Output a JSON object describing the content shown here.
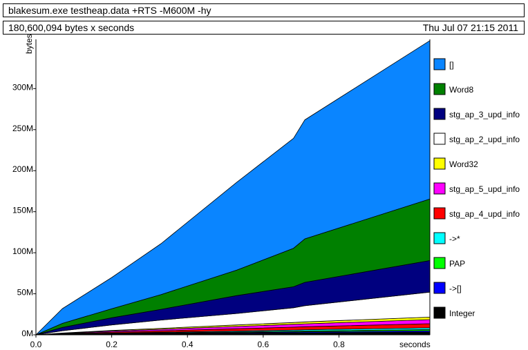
{
  "header": {
    "command": "blakesum.exe testheap.data +RTS -M600M -hy",
    "total": "180,600,094 bytes x seconds",
    "date": "Thu Jul 07 21:15 2011"
  },
  "chart_data": {
    "type": "area",
    "stacked": true,
    "xlabel": "seconds",
    "ylabel": "bytes",
    "xlim": [
      0,
      1.04
    ],
    "ylim": [
      0,
      360
    ],
    "x_ticks": [
      "0.0",
      "0.2",
      "0.4",
      "0.6",
      "0.8"
    ],
    "x_tick_values": [
      0.0,
      0.2,
      0.4,
      0.6,
      0.8
    ],
    "y_ticks": [
      "0M",
      "50M",
      "100M",
      "150M",
      "200M",
      "250M",
      "300M"
    ],
    "y_tick_values": [
      0,
      50,
      100,
      150,
      200,
      250,
      300
    ],
    "y_unit": "M bytes",
    "legend_position": "right",
    "x": [
      0.0,
      0.07,
      0.2,
      0.33,
      0.53,
      0.68,
      0.71,
      1.04
    ],
    "series": [
      {
        "name": "Integer",
        "color": "#000000",
        "values": [
          0,
          0.3,
          0.8,
          1.2,
          1.8,
          2.3,
          2.4,
          3.4
        ]
      },
      {
        "name": "->[]",
        "color": "#0000ff",
        "values": [
          0,
          0.2,
          0.4,
          0.6,
          0.9,
          1.1,
          1.2,
          1.6
        ]
      },
      {
        "name": "PAP",
        "color": "#00ff00",
        "values": [
          0,
          0.2,
          0.4,
          0.6,
          0.8,
          1.0,
          1.1,
          1.5
        ]
      },
      {
        "name": "->*",
        "color": "#00ffff",
        "values": [
          0,
          0.2,
          0.5,
          0.7,
          1.1,
          1.4,
          1.5,
          2.0
        ]
      },
      {
        "name": "stg_ap_4_upd_info",
        "color": "#ff0000",
        "values": [
          0,
          0.5,
          1.2,
          1.8,
          2.8,
          3.5,
          3.6,
          5.0
        ]
      },
      {
        "name": "stg_ap_5_upd_info",
        "color": "#ff00ff",
        "values": [
          0,
          0.5,
          1.2,
          1.8,
          2.8,
          3.5,
          3.6,
          5.0
        ]
      },
      {
        "name": "Word32",
        "color": "#ffff00",
        "values": [
          0,
          0.3,
          0.8,
          1.2,
          1.8,
          2.2,
          2.3,
          3.0
        ]
      },
      {
        "name": "stg_ap_2_upd_info",
        "color": "#ffffff",
        "values": [
          0,
          2.8,
          6.7,
          10.1,
          14.0,
          18.0,
          19.8,
          30.5
        ]
      },
      {
        "name": "stg_ap_3_upd_info",
        "color": "#00007f",
        "values": [
          0,
          4.0,
          8.8,
          13.0,
          21.8,
          25.5,
          28.4,
          38.5
        ]
      },
      {
        "name": "Word8",
        "color": "#008000",
        "values": [
          0,
          5.0,
          11.0,
          18.0,
          31.0,
          47.0,
          53.0,
          75.0
        ]
      },
      {
        "name": "[]",
        "color": "#0a85ff",
        "values": [
          0,
          18.0,
          38.0,
          62.0,
          107.0,
          134.0,
          145.0,
          193.0
        ]
      }
    ]
  }
}
